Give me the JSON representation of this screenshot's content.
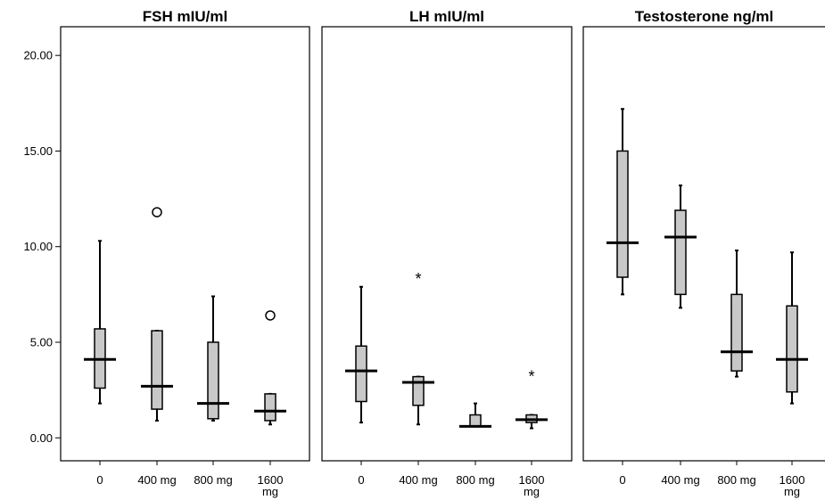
{
  "chart_data": {
    "type": "boxplot",
    "ylim": [
      -1.2,
      21.5
    ],
    "yticks": [
      0,
      5,
      10,
      15,
      20
    ],
    "ytick_labels": [
      "0.00",
      "5.00",
      "10.00",
      "15.00",
      "20.00"
    ],
    "categories": [
      "0",
      "400 mg",
      "800 mg",
      "1600 mg"
    ],
    "grid": false,
    "panels": [
      {
        "title": "FSH mIU/ml",
        "boxes": [
          {
            "category": "0",
            "min": 1.8,
            "q1": 2.6,
            "median": 4.1,
            "q3": 5.7,
            "max": 10.3,
            "outliers": [],
            "extremes": []
          },
          {
            "category": "400 mg",
            "min": 0.9,
            "q1": 1.5,
            "median": 2.7,
            "q3": 5.6,
            "max": 5.6,
            "outliers": [
              11.8
            ],
            "extremes": []
          },
          {
            "category": "800 mg",
            "min": 0.9,
            "q1": 1.0,
            "median": 1.8,
            "q3": 5.0,
            "max": 7.4,
            "outliers": [],
            "extremes": []
          },
          {
            "category": "1600 mg",
            "min": 0.7,
            "q1": 0.9,
            "median": 1.4,
            "q3": 2.3,
            "max": 2.3,
            "outliers": [
              6.4
            ],
            "extremes": []
          }
        ]
      },
      {
        "title": "LH mIU/ml",
        "boxes": [
          {
            "category": "0",
            "min": 0.8,
            "q1": 1.9,
            "median": 3.5,
            "q3": 4.8,
            "max": 7.9,
            "outliers": [],
            "extremes": []
          },
          {
            "category": "400 mg",
            "min": 0.7,
            "q1": 1.7,
            "median": 2.9,
            "q3": 3.2,
            "max": 3.2,
            "outliers": [],
            "extremes": [
              8.4
            ]
          },
          {
            "category": "800 mg",
            "min": 0.6,
            "q1": 0.6,
            "median": 0.6,
            "q3": 1.2,
            "max": 1.8,
            "outliers": [],
            "extremes": []
          },
          {
            "category": "1600 mg",
            "min": 0.5,
            "q1": 0.8,
            "median": 0.95,
            "q3": 1.2,
            "max": 1.2,
            "outliers": [],
            "extremes": [
              3.3
            ]
          }
        ]
      },
      {
        "title": "Testosterone ng/ml",
        "boxes": [
          {
            "category": "0",
            "min": 7.5,
            "q1": 8.4,
            "median": 10.2,
            "q3": 15.0,
            "max": 17.2,
            "outliers": [],
            "extremes": []
          },
          {
            "category": "400 mg",
            "min": 6.8,
            "q1": 7.5,
            "median": 10.5,
            "q3": 11.9,
            "max": 13.2,
            "outliers": [],
            "extremes": []
          },
          {
            "category": "800 mg",
            "min": 3.2,
            "q1": 3.5,
            "median": 4.5,
            "q3": 7.5,
            "max": 9.8,
            "outliers": [],
            "extremes": []
          },
          {
            "category": "1600 mg",
            "min": 1.8,
            "q1": 2.4,
            "median": 4.1,
            "q3": 6.9,
            "max": 9.7,
            "outliers": [],
            "extremes": []
          }
        ]
      }
    ],
    "colors": {
      "box_fill": "#c8c8c8",
      "stroke": "#000000",
      "background": "#ffffff"
    }
  }
}
